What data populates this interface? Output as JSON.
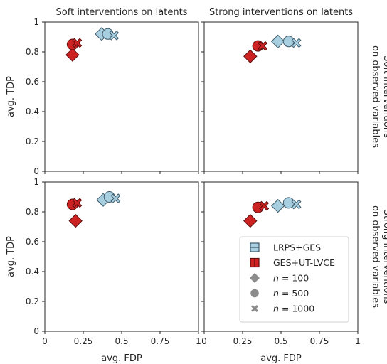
{
  "colors": {
    "lrps": "#a7cfe0",
    "lrps_edge": "#3f5a69",
    "ges": "#cc2222",
    "ges_edge": "#5a0d0d",
    "marker_gray": "#8c8c8c"
  },
  "chart_data": {
    "type": "scatter",
    "grid": false,
    "legend_placement": "bottom-right (lower-right panel)",
    "xlim": [
      0,
      1
    ],
    "ylim": [
      0,
      1
    ],
    "xlabel": "avg. FDP",
    "ylabel": "avg. TDP",
    "x_ticks": [
      "0",
      "0.25",
      "0.5",
      "0.75",
      "1"
    ],
    "y_ticks": [
      "0",
      "0.2",
      "0.4",
      "0.6",
      "0.8",
      "1"
    ],
    "column_titles": [
      "Soft interventions on latents",
      "Strong interventions on latents"
    ],
    "row_titles": [
      [
        "Soft interventions",
        "on observed variables"
      ],
      [
        "Strong interventions",
        "on observed variables"
      ]
    ],
    "legend": {
      "methods": [
        {
          "key": "lrps",
          "label": "LRPS+GES"
        },
        {
          "key": "ges",
          "label": "GES+UT-LVCE"
        }
      ],
      "sizes": [
        {
          "var": "n",
          "value": "100",
          "marker": "diamond"
        },
        {
          "var": "n",
          "value": "500",
          "marker": "circle"
        },
        {
          "var": "n",
          "value": "1000",
          "marker": "cross"
        }
      ]
    },
    "panels": [
      {
        "row": 0,
        "col": 0,
        "points": [
          {
            "method": "lrps",
            "n": 100,
            "marker": "diamond",
            "x": 0.37,
            "y": 0.92
          },
          {
            "method": "lrps",
            "n": 500,
            "marker": "circle",
            "x": 0.41,
            "y": 0.92
          },
          {
            "method": "lrps",
            "n": 1000,
            "marker": "cross",
            "x": 0.45,
            "y": 0.91
          },
          {
            "method": "ges",
            "n": 100,
            "marker": "diamond",
            "x": 0.18,
            "y": 0.78
          },
          {
            "method": "ges",
            "n": 500,
            "marker": "circle",
            "x": 0.18,
            "y": 0.85
          },
          {
            "method": "ges",
            "n": 1000,
            "marker": "cross",
            "x": 0.21,
            "y": 0.86
          }
        ]
      },
      {
        "row": 0,
        "col": 1,
        "points": [
          {
            "method": "lrps",
            "n": 100,
            "marker": "diamond",
            "x": 0.48,
            "y": 0.87
          },
          {
            "method": "lrps",
            "n": 500,
            "marker": "circle",
            "x": 0.55,
            "y": 0.87
          },
          {
            "method": "lrps",
            "n": 1000,
            "marker": "cross",
            "x": 0.6,
            "y": 0.86
          },
          {
            "method": "ges",
            "n": 100,
            "marker": "diamond",
            "x": 0.3,
            "y": 0.77
          },
          {
            "method": "ges",
            "n": 500,
            "marker": "circle",
            "x": 0.35,
            "y": 0.84
          },
          {
            "method": "ges",
            "n": 1000,
            "marker": "cross",
            "x": 0.38,
            "y": 0.84
          }
        ]
      },
      {
        "row": 1,
        "col": 0,
        "points": [
          {
            "method": "lrps",
            "n": 100,
            "marker": "diamond",
            "x": 0.38,
            "y": 0.88
          },
          {
            "method": "lrps",
            "n": 500,
            "marker": "circle",
            "x": 0.42,
            "y": 0.9
          },
          {
            "method": "lrps",
            "n": 1000,
            "marker": "cross",
            "x": 0.46,
            "y": 0.89
          },
          {
            "method": "ges",
            "n": 100,
            "marker": "diamond",
            "x": 0.2,
            "y": 0.74
          },
          {
            "method": "ges",
            "n": 500,
            "marker": "circle",
            "x": 0.18,
            "y": 0.85
          },
          {
            "method": "ges",
            "n": 1000,
            "marker": "cross",
            "x": 0.21,
            "y": 0.86
          }
        ]
      },
      {
        "row": 1,
        "col": 1,
        "points": [
          {
            "method": "lrps",
            "n": 100,
            "marker": "diamond",
            "x": 0.48,
            "y": 0.84
          },
          {
            "method": "lrps",
            "n": 500,
            "marker": "circle",
            "x": 0.55,
            "y": 0.86
          },
          {
            "method": "lrps",
            "n": 1000,
            "marker": "cross",
            "x": 0.6,
            "y": 0.85
          },
          {
            "method": "ges",
            "n": 100,
            "marker": "diamond",
            "x": 0.3,
            "y": 0.74
          },
          {
            "method": "ges",
            "n": 500,
            "marker": "circle",
            "x": 0.35,
            "y": 0.83
          },
          {
            "method": "ges",
            "n": 1000,
            "marker": "cross",
            "x": 0.39,
            "y": 0.84
          }
        ]
      }
    ]
  }
}
